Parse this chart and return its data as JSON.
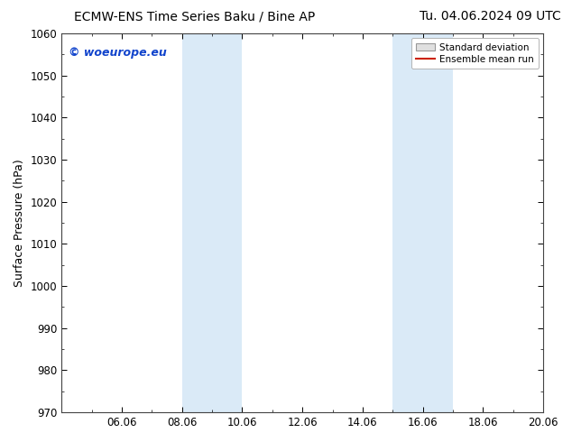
{
  "title_left": "ECMW-ENS Time Series Baku / Bine AP",
  "title_right": "Tu. 04.06.2024 09 UTC",
  "ylabel": "Surface Pressure (hPa)",
  "xlabel": "",
  "ylim": [
    970,
    1060
  ],
  "yticks": [
    970,
    980,
    990,
    1000,
    1010,
    1020,
    1030,
    1040,
    1050,
    1060
  ],
  "xlim_min": 0,
  "xlim_max": 16,
  "xtick_labels": [
    "06.06",
    "08.06",
    "10.06",
    "12.06",
    "14.06",
    "16.06",
    "18.06",
    "20.06"
  ],
  "xtick_positions": [
    2,
    4,
    6,
    8,
    10,
    12,
    14,
    16
  ],
  "shaded_regions": [
    {
      "x_start": 4,
      "x_end": 6,
      "color": "#daeaf7"
    },
    {
      "x_start": 11,
      "x_end": 13,
      "color": "#daeaf7"
    }
  ],
  "watermark_text": "© woeurope.eu",
  "watermark_color": "#1144cc",
  "legend_std_label": "Standard deviation",
  "legend_mean_label": "Ensemble mean run",
  "legend_std_facecolor": "#e0e0e0",
  "legend_std_edgecolor": "#999999",
  "legend_mean_color": "#cc2200",
  "background_color": "#ffffff",
  "spine_color": "#444444",
  "title_fontsize": 10,
  "tick_fontsize": 8.5,
  "ylabel_fontsize": 9,
  "watermark_fontsize": 9
}
